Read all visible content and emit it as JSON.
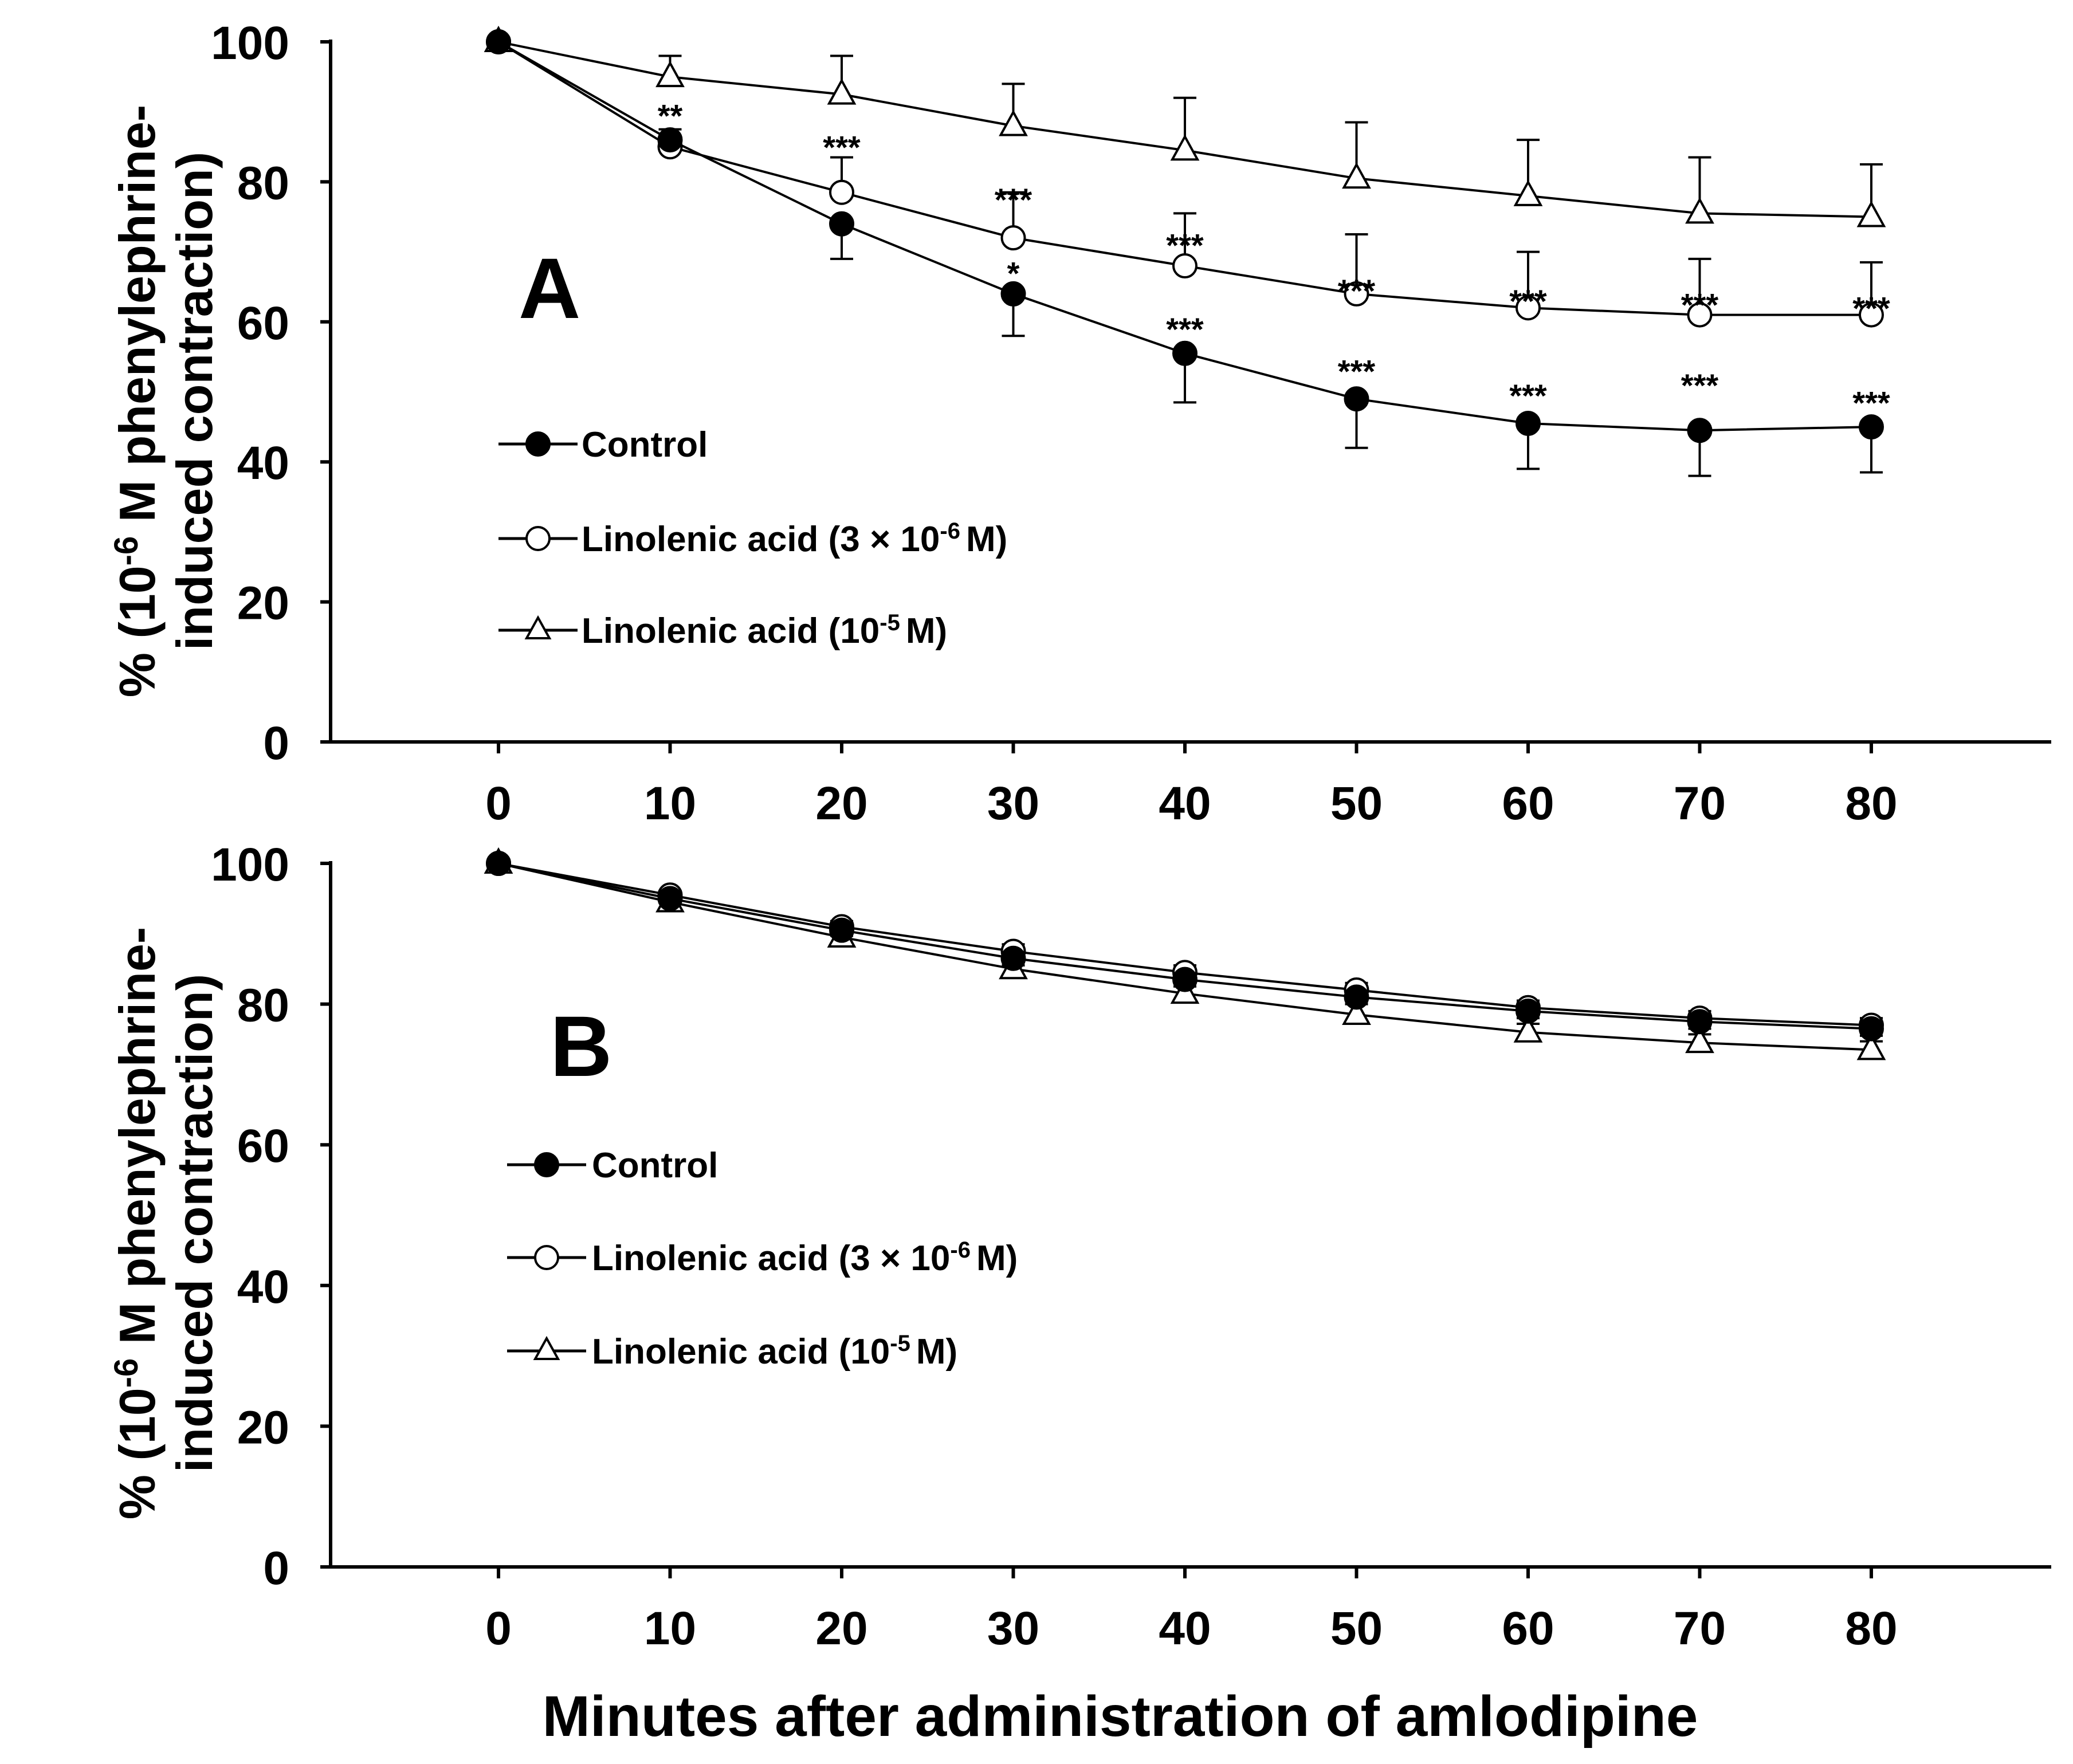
{
  "chart_data": {
    "type": "line",
    "xlabel": "Minutes after administration of amlodipine",
    "panels": [
      {
        "panel_label": "A",
        "ylabel_line1": "% (10-6 M phenylephrine-",
        "ylabel_line2": "induced contraction)",
        "ylim": [
          0,
          100
        ],
        "yticks": [
          0,
          20,
          40,
          60,
          80,
          100
        ],
        "x": [
          0,
          10,
          20,
          30,
          40,
          50,
          60,
          70,
          80
        ],
        "series": [
          {
            "name": "Control",
            "marker": "filled-circle",
            "values": [
              100,
              86,
              74,
              64,
              55.5,
              49,
              45.5,
              44.5,
              45
            ],
            "errors": [
              0,
              0,
              5,
              6,
              7,
              7,
              6.5,
              6.5,
              6.5
            ]
          },
          {
            "name": "Linolenic acid (3 × 10-6 M)",
            "marker": "open-circle",
            "values": [
              100,
              85,
              78.5,
              72,
              68,
              64,
              62,
              61,
              61
            ],
            "errors": [
              0,
              2.5,
              5,
              6.5,
              7.5,
              8.5,
              8,
              8,
              7.5
            ]
          },
          {
            "name": "Linolenic acid (10-5 M)",
            "marker": "open-triangle",
            "values": [
              100,
              95,
              92.5,
              88,
              84.5,
              80.5,
              78,
              75.5,
              75
            ],
            "errors": [
              0,
              3,
              5.5,
              6,
              7.5,
              8,
              8,
              8,
              7.5
            ]
          }
        ],
        "annotations": [
          {
            "x": 10,
            "y": 89.5,
            "text": "**"
          },
          {
            "x": 20,
            "y": 85,
            "text": "***"
          },
          {
            "x": 30,
            "y": 77.5,
            "text": "***"
          },
          {
            "x": 30,
            "y": 67,
            "text": "*"
          },
          {
            "x": 40,
            "y": 71,
            "text": "***"
          },
          {
            "x": 40,
            "y": 59,
            "text": "***"
          },
          {
            "x": 50,
            "y": 64.5,
            "text": "***"
          },
          {
            "x": 50,
            "y": 53,
            "text": "***"
          },
          {
            "x": 60,
            "y": 63,
            "text": "***"
          },
          {
            "x": 60,
            "y": 49.5,
            "text": "***"
          },
          {
            "x": 70,
            "y": 62.5,
            "text": "***"
          },
          {
            "x": 70,
            "y": 51,
            "text": "***"
          },
          {
            "x": 80,
            "y": 62,
            "text": "***"
          },
          {
            "x": 80,
            "y": 48.5,
            "text": "***"
          }
        ],
        "legend": {
          "control": "Control",
          "ala3_text": "Linolenic acid (3 × 10",
          "ala3_exp": "-6",
          "ala3_unit": "M)",
          "ala10_text": "Linolenic acid (10",
          "ala10_exp": "-5",
          "ala10_unit": "M)"
        }
      },
      {
        "panel_label": "B",
        "ylabel_line1": "% (10-6 M phenylephrine-",
        "ylabel_line2": "induced contraction)",
        "ylim": [
          0,
          100
        ],
        "yticks": [
          0,
          20,
          40,
          60,
          80,
          100
        ],
        "x": [
          0,
          10,
          20,
          30,
          40,
          50,
          60,
          70,
          80
        ],
        "series": [
          {
            "name": "Control",
            "marker": "filled-circle",
            "values": [
              100,
              95,
              90.5,
              86.5,
              83.5,
              81,
              79,
              77.5,
              76.5
            ],
            "errors": [
              0,
              0.5,
              0.8,
              1,
              1,
              1,
              1,
              1,
              1
            ]
          },
          {
            "name": "Linolenic acid (3 × 10-6 M)",
            "marker": "open-circle",
            "values": [
              100,
              95.5,
              91,
              87.5,
              84.5,
              82,
              79.5,
              78,
              77
            ],
            "errors": [
              0,
              0.5,
              0.8,
              1,
              1,
              1,
              1,
              1,
              1
            ]
          },
          {
            "name": "Linolenic acid (10-5 M)",
            "marker": "open-triangle",
            "values": [
              100,
              94.5,
              89.5,
              85,
              81.5,
              78.5,
              76,
              74.5,
              73.5
            ],
            "errors": [
              0,
              0.8,
              1,
              1.5,
              1.5,
              1.5,
              1.2,
              1.2,
              1.2
            ]
          }
        ],
        "annotations": [],
        "legend": {
          "control": "Control",
          "ala3_text": "Linolenic acid (3 × 10",
          "ala3_exp": "-6",
          "ala3_unit": "M)",
          "ala10_text": "Linolenic acid (10",
          "ala10_exp": "-5",
          "ala10_unit": "M)"
        }
      }
    ]
  },
  "labels": {
    "ylabel_pre": "% (10",
    "ylabel_exp": "-6",
    "ylabel_post": " M phenylephrine-",
    "ylabel_line2": "induced contraction)"
  }
}
